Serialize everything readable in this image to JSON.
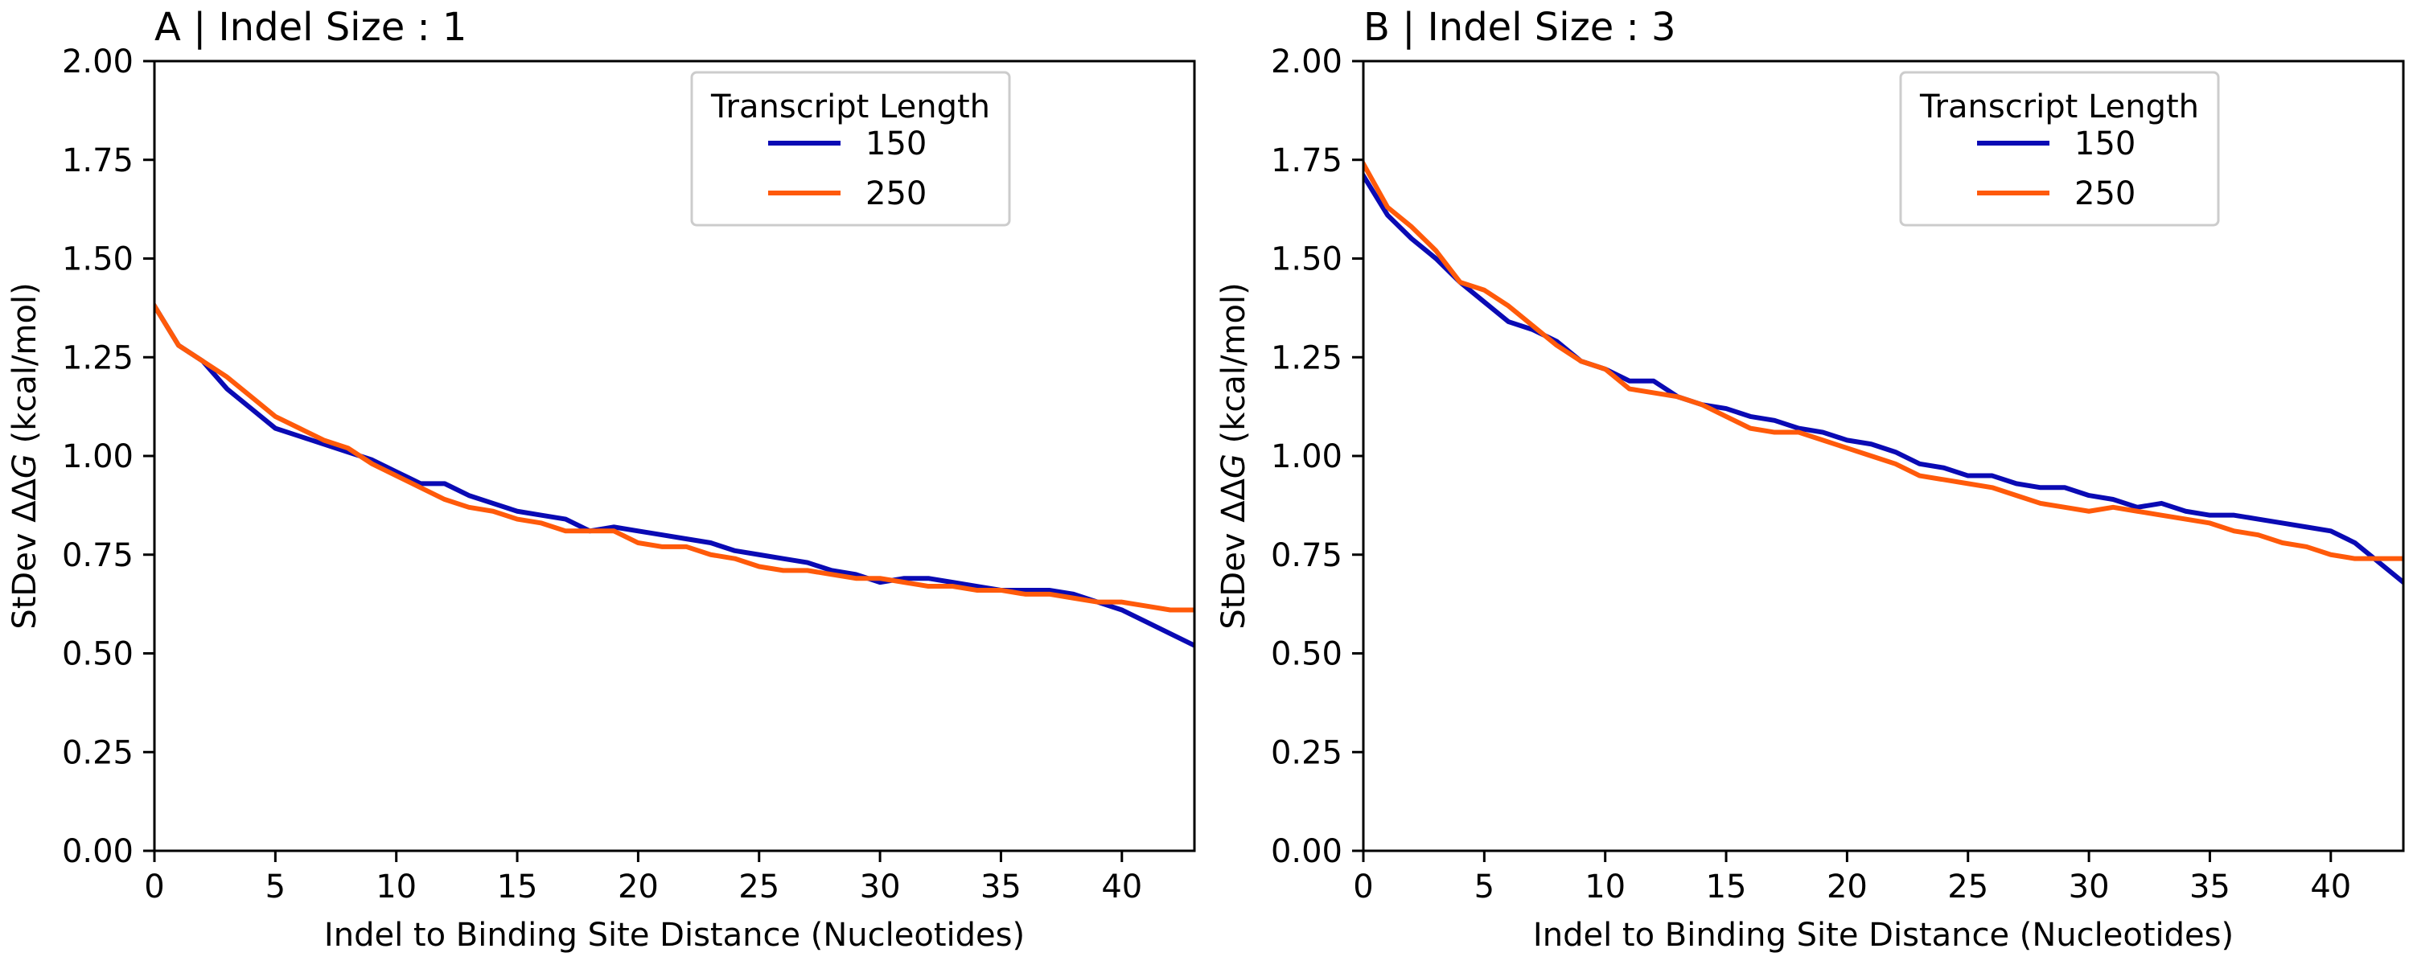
{
  "chart_data": [
    {
      "type": "line",
      "title": "A | Indel Size : 1",
      "xlabel": "Indel to Binding Site Distance (Nucleotides)",
      "ylabel_prefix": "StDev ",
      "ylabel_symbol": "ΔΔ",
      "ylabel_italic": "G",
      "ylabel_suffix": " (kcal/mol)",
      "xlim": [
        0,
        43
      ],
      "ylim": [
        0,
        2.0
      ],
      "xticks": [
        "0",
        "5",
        "10",
        "15",
        "20",
        "25",
        "30",
        "35",
        "40"
      ],
      "yticks": [
        "0.00",
        "0.25",
        "0.50",
        "0.75",
        "1.00",
        "1.25",
        "1.50",
        "1.75",
        "2.00"
      ],
      "grid": false,
      "legend": {
        "title": "Transcript Length",
        "placement": "upper-center"
      },
      "series": [
        {
          "name": "150",
          "color": "#0a0ab4",
          "x": [
            0,
            1,
            2,
            3,
            4,
            5,
            6,
            7,
            8,
            9,
            10,
            11,
            12,
            13,
            14,
            15,
            16,
            17,
            18,
            19,
            20,
            21,
            22,
            23,
            24,
            25,
            26,
            27,
            28,
            29,
            30,
            31,
            32,
            33,
            34,
            35,
            36,
            37,
            38,
            39,
            40,
            41,
            42,
            43
          ],
          "y": [
            1.38,
            1.28,
            1.24,
            1.17,
            1.12,
            1.07,
            1.05,
            1.03,
            1.01,
            0.99,
            0.96,
            0.93,
            0.93,
            0.9,
            0.88,
            0.86,
            0.85,
            0.84,
            0.81,
            0.82,
            0.81,
            0.8,
            0.79,
            0.78,
            0.76,
            0.75,
            0.74,
            0.73,
            0.71,
            0.7,
            0.68,
            0.69,
            0.69,
            0.68,
            0.67,
            0.66,
            0.66,
            0.66,
            0.65,
            0.63,
            0.61,
            0.58,
            0.55,
            0.52
          ]
        },
        {
          "name": "250",
          "color": "#ff5a0a",
          "x": [
            0,
            1,
            2,
            3,
            4,
            5,
            6,
            7,
            8,
            9,
            10,
            11,
            12,
            13,
            14,
            15,
            16,
            17,
            18,
            19,
            20,
            21,
            22,
            23,
            24,
            25,
            26,
            27,
            28,
            29,
            30,
            31,
            32,
            33,
            34,
            35,
            36,
            37,
            38,
            39,
            40,
            41,
            42,
            43
          ],
          "y": [
            1.38,
            1.28,
            1.24,
            1.2,
            1.15,
            1.1,
            1.07,
            1.04,
            1.02,
            0.98,
            0.95,
            0.92,
            0.89,
            0.87,
            0.86,
            0.84,
            0.83,
            0.81,
            0.81,
            0.81,
            0.78,
            0.77,
            0.77,
            0.75,
            0.74,
            0.72,
            0.71,
            0.71,
            0.7,
            0.69,
            0.69,
            0.68,
            0.67,
            0.67,
            0.66,
            0.66,
            0.65,
            0.65,
            0.64,
            0.63,
            0.63,
            0.62,
            0.61,
            0.61
          ]
        }
      ]
    },
    {
      "type": "line",
      "title": "B | Indel Size : 3",
      "xlabel": "Indel to Binding Site Distance (Nucleotides)",
      "ylabel_prefix": "StDev ",
      "ylabel_symbol": "ΔΔ",
      "ylabel_italic": "G",
      "ylabel_suffix": " (kcal/mol)",
      "xlim": [
        0,
        43
      ],
      "ylim": [
        0,
        2.0
      ],
      "xticks": [
        "0",
        "5",
        "10",
        "15",
        "20",
        "25",
        "30",
        "35",
        "40"
      ],
      "yticks": [
        "0.00",
        "0.25",
        "0.50",
        "0.75",
        "1.00",
        "1.25",
        "1.50",
        "1.75",
        "2.00"
      ],
      "grid": false,
      "legend": {
        "title": "Transcript Length",
        "placement": "upper-center"
      },
      "series": [
        {
          "name": "150",
          "color": "#0a0ab4",
          "x": [
            0,
            1,
            2,
            3,
            4,
            5,
            6,
            7,
            8,
            9,
            10,
            11,
            12,
            13,
            14,
            15,
            16,
            17,
            18,
            19,
            20,
            21,
            22,
            23,
            24,
            25,
            26,
            27,
            28,
            29,
            30,
            31,
            32,
            33,
            34,
            35,
            36,
            37,
            38,
            39,
            40,
            41,
            42,
            43
          ],
          "y": [
            1.71,
            1.61,
            1.55,
            1.5,
            1.44,
            1.39,
            1.34,
            1.32,
            1.29,
            1.24,
            1.22,
            1.19,
            1.19,
            1.15,
            1.13,
            1.12,
            1.1,
            1.09,
            1.07,
            1.06,
            1.04,
            1.03,
            1.01,
            0.98,
            0.97,
            0.95,
            0.95,
            0.93,
            0.92,
            0.92,
            0.9,
            0.89,
            0.87,
            0.88,
            0.86,
            0.85,
            0.85,
            0.84,
            0.83,
            0.82,
            0.81,
            0.78,
            0.73,
            0.68
          ]
        },
        {
          "name": "250",
          "color": "#ff5a0a",
          "x": [
            0,
            1,
            2,
            3,
            4,
            5,
            6,
            7,
            8,
            9,
            10,
            11,
            12,
            13,
            14,
            15,
            16,
            17,
            18,
            19,
            20,
            21,
            22,
            23,
            24,
            25,
            26,
            27,
            28,
            29,
            30,
            31,
            32,
            33,
            34,
            35,
            36,
            37,
            38,
            39,
            40,
            41,
            42,
            43
          ],
          "y": [
            1.74,
            1.63,
            1.58,
            1.52,
            1.44,
            1.42,
            1.38,
            1.33,
            1.28,
            1.24,
            1.22,
            1.17,
            1.16,
            1.15,
            1.13,
            1.1,
            1.07,
            1.06,
            1.06,
            1.04,
            1.02,
            1.0,
            0.98,
            0.95,
            0.94,
            0.93,
            0.92,
            0.9,
            0.88,
            0.87,
            0.86,
            0.87,
            0.86,
            0.85,
            0.84,
            0.83,
            0.81,
            0.8,
            0.78,
            0.77,
            0.75,
            0.74,
            0.74,
            0.74
          ]
        }
      ]
    }
  ]
}
